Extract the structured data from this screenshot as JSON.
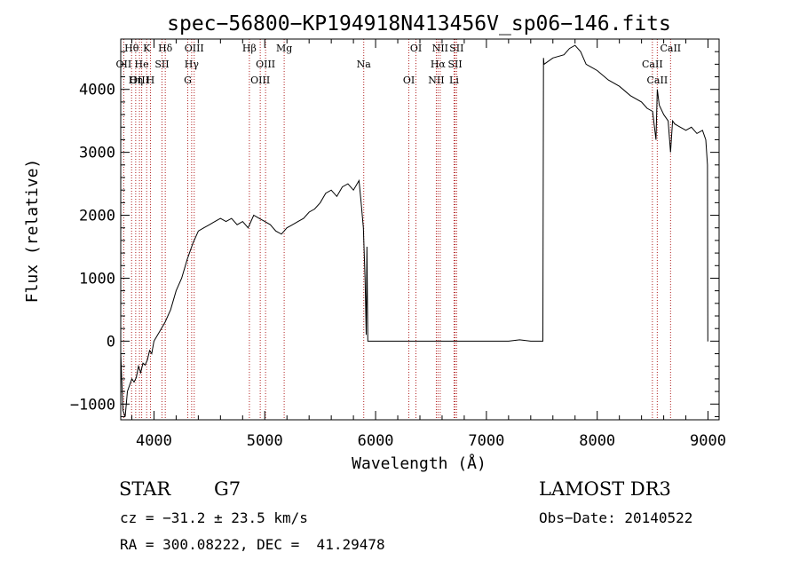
{
  "colors": {
    "line": "#000000",
    "marker": "#b22222",
    "background": "#ffffff"
  },
  "chart_data": {
    "type": "line",
    "title": "spec−56800−KP194918N413456V_sp06−146.fits",
    "xlabel": "Wavelength (Å)",
    "ylabel": "Flux (relative)",
    "xlim": [
      3700,
      9100
    ],
    "ylim": [
      -1250,
      4800
    ],
    "xticks": [
      4000,
      5000,
      6000,
      7000,
      8000,
      9000
    ],
    "yticks": [
      -1000,
      0,
      1000,
      2000,
      3000,
      4000
    ],
    "ytick_labels": [
      "−1000",
      "0",
      "1000",
      "2000",
      "3000",
      "4000"
    ],
    "grid": false,
    "series": [
      {
        "name": "flux",
        "x": [
          3700,
          3720,
          3740,
          3760,
          3780,
          3800,
          3820,
          3840,
          3860,
          3880,
          3900,
          3920,
          3940,
          3960,
          3980,
          4000,
          4050,
          4100,
          4150,
          4200,
          4250,
          4300,
          4350,
          4400,
          4450,
          4500,
          4550,
          4600,
          4650,
          4700,
          4750,
          4800,
          4850,
          4900,
          4950,
          5000,
          5050,
          5100,
          5150,
          5200,
          5250,
          5300,
          5350,
          5400,
          5450,
          5500,
          5550,
          5600,
          5650,
          5700,
          5750,
          5800,
          5850,
          5870,
          5890,
          5905,
          5915,
          5922,
          5930,
          6000,
          6500,
          7000,
          7200,
          7300,
          7400,
          7510,
          7515,
          7520,
          7600,
          7700,
          7750,
          7800,
          7850,
          7900,
          7950,
          8000,
          8100,
          8200,
          8300,
          8400,
          8450,
          8500,
          8530,
          8542,
          8560,
          8600,
          8640,
          8662,
          8680,
          8700,
          8750,
          8800,
          8850,
          8900,
          8950,
          8980,
          8995,
          8998,
          9000
        ],
        "y": [
          -200,
          -1100,
          -1200,
          -800,
          -700,
          -600,
          -650,
          -580,
          -400,
          -500,
          -350,
          -380,
          -300,
          -150,
          -200,
          0,
          150,
          300,
          500,
          800,
          1000,
          1300,
          1550,
          1750,
          1800,
          1850,
          1900,
          1950,
          1900,
          1950,
          1850,
          1900,
          1800,
          2000,
          1950,
          1900,
          1850,
          1750,
          1700,
          1800,
          1850,
          1900,
          1950,
          2050,
          2100,
          2200,
          2350,
          2400,
          2300,
          2450,
          2500,
          2400,
          2550,
          2200,
          1800,
          1000,
          100,
          1500,
          0,
          0,
          0,
          0,
          0,
          20,
          0,
          0,
          4500,
          4400,
          4500,
          4550,
          4650,
          4700,
          4600,
          4400,
          4350,
          4300,
          4150,
          4050,
          3900,
          3800,
          3700,
          3650,
          3200,
          4000,
          3750,
          3600,
          3500,
          3000,
          3500,
          3450,
          3400,
          3350,
          3400,
          3300,
          3350,
          3200,
          2800,
          0,
          0
        ]
      }
    ],
    "lines": [
      {
        "label": "Hθ",
        "x": 3798
      },
      {
        "label": "OII",
        "x": 3727
      },
      {
        "label": "OIII",
        "x": 3869
      },
      {
        "label": "K",
        "x": 3934
      },
      {
        "label": "He",
        "x": 3889
      },
      {
        "label": "Hη",
        "x": 3835
      },
      {
        "label": "Hδ",
        "x": 4102
      },
      {
        "label": "SII",
        "x": 4072
      },
      {
        "label": "H",
        "x": 3968
      },
      {
        "label": "OIII",
        "x": 4363
      },
      {
        "label": "Hγ",
        "x": 4340
      },
      {
        "label": "G",
        "x": 4305
      },
      {
        "label": "Hβ",
        "x": 4861
      },
      {
        "label": "OIII",
        "x": 5007
      },
      {
        "label": "OIII",
        "x": 4959
      },
      {
        "label": "Mg",
        "x": 5175
      },
      {
        "label": "Na",
        "x": 5893
      },
      {
        "label": "OI",
        "x": 6300
      },
      {
        "label": "OI",
        "x": 6364
      },
      {
        "label": "Hα",
        "x": 6563
      },
      {
        "label": "NII",
        "x": 6548
      },
      {
        "label": "NII",
        "x": 6583
      },
      {
        "label": "SII",
        "x": 6717
      },
      {
        "label": "Li",
        "x": 6708
      },
      {
        "label": "SII",
        "x": 6731
      },
      {
        "label": "CaII",
        "x": 8498
      },
      {
        "label": "CaII",
        "x": 8542
      },
      {
        "label": "CaII",
        "x": 8662
      }
    ]
  },
  "annotations": {
    "object_class": "STAR",
    "subclass": "G7",
    "survey": "LAMOST DR3",
    "redshift": "cz = −31.2 ± 23.5 km/s",
    "obs_date": "Obs−Date: 20140522",
    "coords": "RA = 300.08222, DEC =  41.29478"
  }
}
